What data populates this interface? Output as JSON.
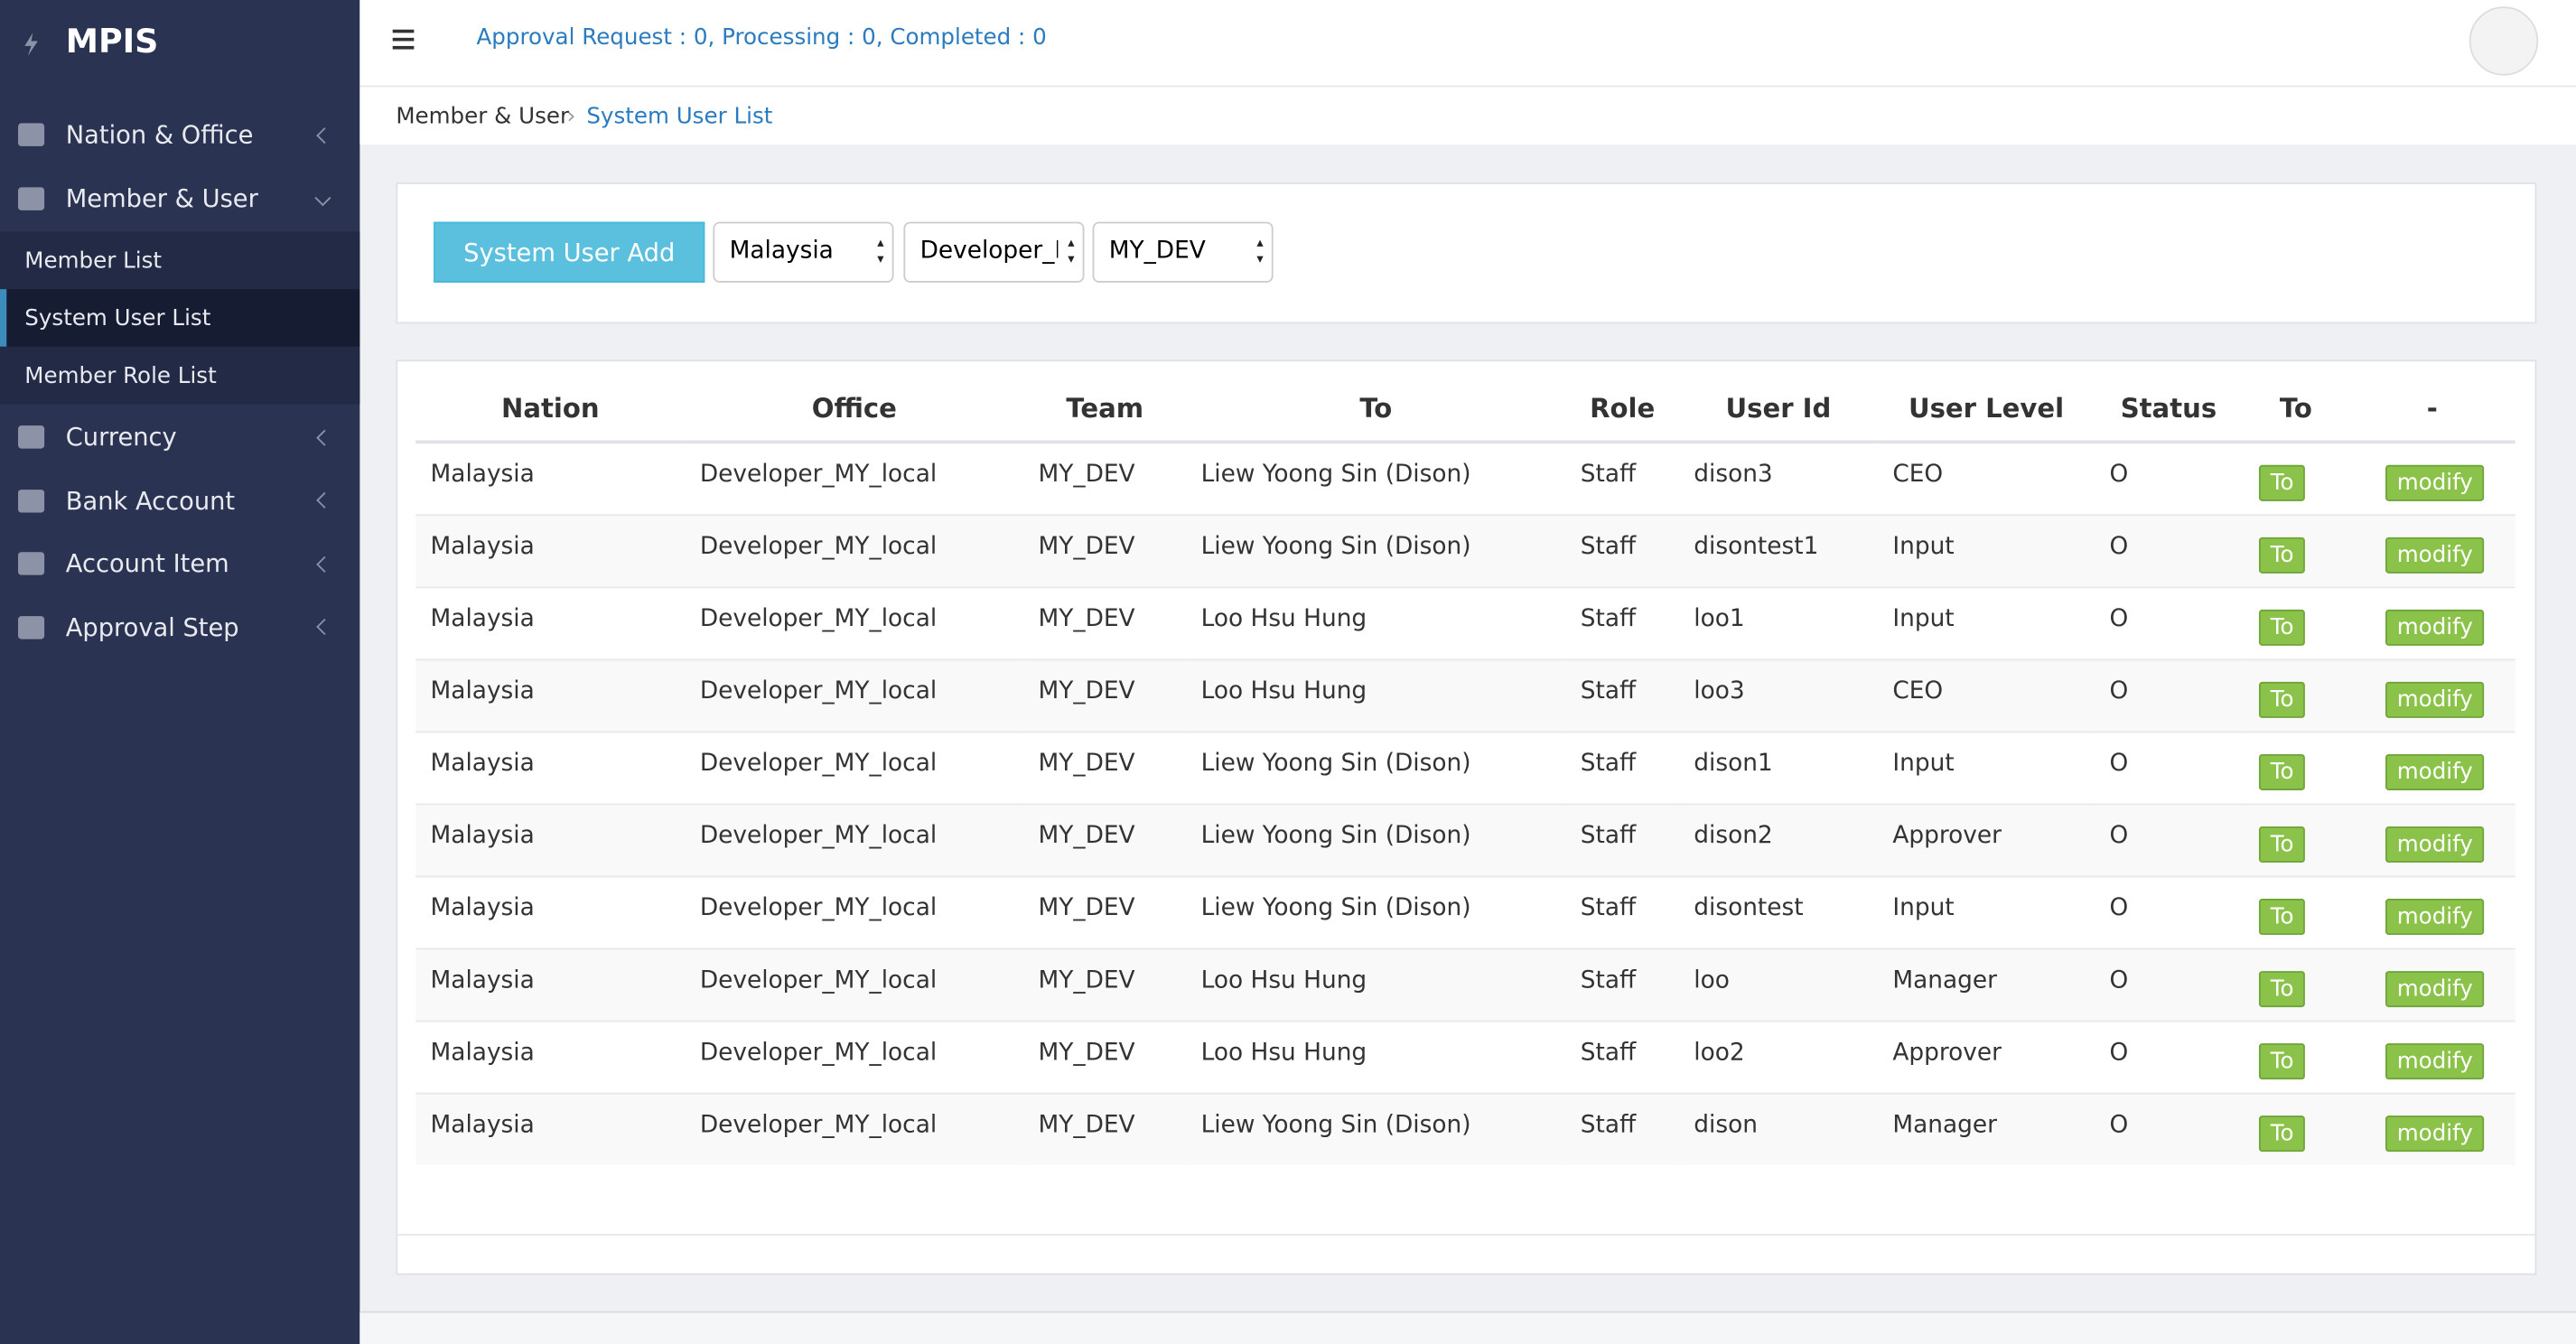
{
  "sidebar": {
    "brand": "MPIS",
    "menu": [
      {
        "label": "Nation & Office"
      },
      {
        "label": "Member & User",
        "children": [
          "Member List",
          "System User List",
          "Member Role List"
        ]
      },
      {
        "label": "Currency"
      },
      {
        "label": "Bank Account"
      },
      {
        "label": "Account Item"
      },
      {
        "label": "Approval Step"
      }
    ]
  },
  "header": {
    "status": "Approval Request : 0, Processing : 0, Completed : 0"
  },
  "breadcrumb": [
    "Member & User",
    "System User List"
  ],
  "toolbar": {
    "button": "System User Add",
    "selects": [
      "Malaysia",
      "Developer_MY_local",
      "MY_DEV"
    ]
  },
  "table": {
    "columns": [
      "Nation",
      "Office",
      "Team",
      "To",
      "Role",
      "User Id",
      "User Level",
      "Status",
      "To",
      "-"
    ],
    "actions": [
      "To",
      "modify"
    ],
    "rows": [
      [
        "Malaysia",
        "Developer_MY_local",
        "MY_DEV",
        "Liew Yoong Sin (Dison)",
        "Staff",
        "dison3",
        "CEO",
        "O"
      ],
      [
        "Malaysia",
        "Developer_MY_local",
        "MY_DEV",
        "Liew Yoong Sin (Dison)",
        "Staff",
        "disontest1",
        "Input",
        "O"
      ],
      [
        "Malaysia",
        "Developer_MY_local",
        "MY_DEV",
        "Loo Hsu Hung",
        "Staff",
        "loo1",
        "Input",
        "O"
      ],
      [
        "Malaysia",
        "Developer_MY_local",
        "MY_DEV",
        "Loo Hsu Hung",
        "Staff",
        "loo3",
        "CEO",
        "O"
      ],
      [
        "Malaysia",
        "Developer_MY_local",
        "MY_DEV",
        "Liew Yoong Sin (Dison)",
        "Staff",
        "dison1",
        "Input",
        "O"
      ],
      [
        "Malaysia",
        "Developer_MY_local",
        "MY_DEV",
        "Liew Yoong Sin (Dison)",
        "Staff",
        "dison2",
        "Approver",
        "O"
      ],
      [
        "Malaysia",
        "Developer_MY_local",
        "MY_DEV",
        "Liew Yoong Sin (Dison)",
        "Staff",
        "disontest",
        "Input",
        "O"
      ],
      [
        "Malaysia",
        "Developer_MY_local",
        "MY_DEV",
        "Loo Hsu Hung",
        "Staff",
        "loo",
        "Manager",
        "O"
      ],
      [
        "Malaysia",
        "Developer_MY_local",
        "MY_DEV",
        "Loo Hsu Hung",
        "Staff",
        "loo2",
        "Approver",
        "O"
      ],
      [
        "Malaysia",
        "Developer_MY_local",
        "MY_DEV",
        "Liew Yoong Sin (Dison)",
        "Staff",
        "dison",
        "Manager",
        "O"
      ]
    ]
  }
}
